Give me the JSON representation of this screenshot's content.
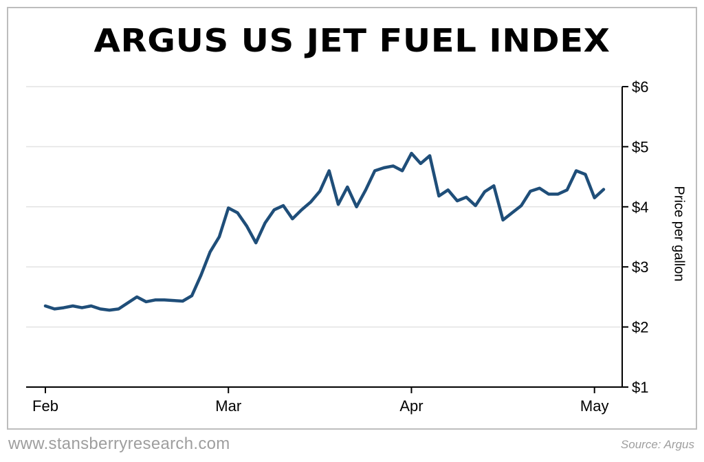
{
  "chart_data": {
    "type": "line",
    "title": "ARGUS US JET FUEL INDEX",
    "ylabel": "Price per gallon",
    "xlabel": "",
    "ylim": [
      1,
      6
    ],
    "yticks": [
      "$6",
      "$5",
      "$4",
      "$3",
      "$2",
      "$1"
    ],
    "ytick_values": [
      6,
      5,
      4,
      3,
      2,
      1
    ],
    "xticks": [
      "Feb",
      "Mar",
      "Apr",
      "May"
    ],
    "grid": "horizontal",
    "line_color": "#1f4e79",
    "series": [
      {
        "values": [
          2.35,
          2.3,
          2.32,
          2.35,
          2.32,
          2.35,
          2.3,
          2.28,
          2.3,
          2.4,
          2.5,
          2.42,
          2.45,
          2.45,
          2.44,
          2.43,
          2.52,
          2.86,
          3.25,
          3.5,
          3.98,
          3.9,
          3.68,
          3.4,
          3.73,
          3.95,
          4.02,
          3.8,
          3.95,
          4.08,
          4.26,
          4.6,
          4.04,
          4.33,
          4.0,
          4.28,
          4.6,
          4.65,
          4.68,
          4.6,
          4.89,
          4.72,
          4.85,
          4.18,
          4.28,
          4.1,
          4.16,
          4.02,
          4.25,
          4.35,
          3.78,
          3.9,
          4.02,
          4.26,
          4.31,
          4.21,
          4.21,
          4.28,
          4.6,
          4.54,
          4.15,
          4.29
        ]
      }
    ]
  },
  "footer": {
    "website": "www.stansberryresearch.com",
    "source": "Source: Argus"
  }
}
